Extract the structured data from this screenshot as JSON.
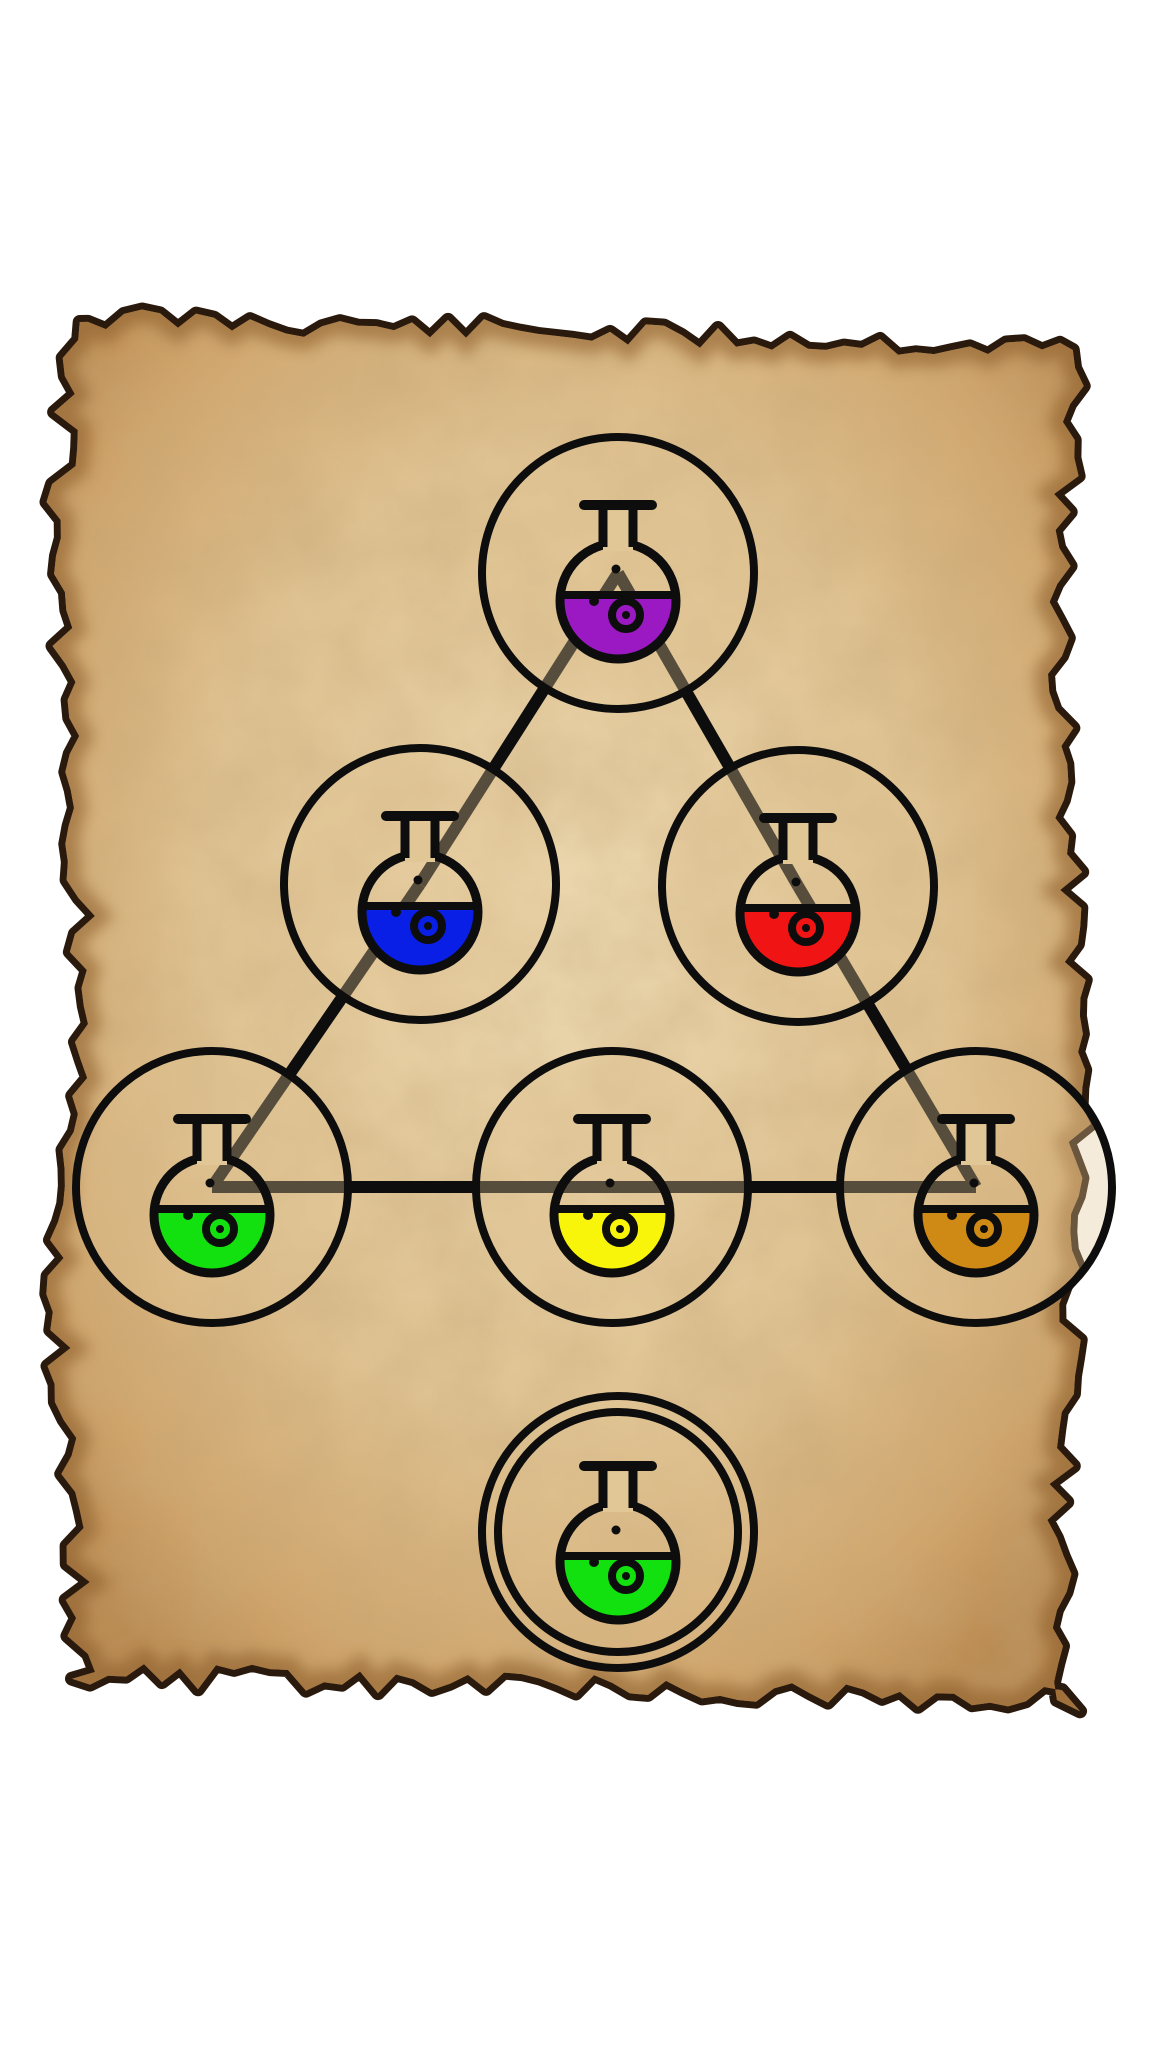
{
  "puzzle": {
    "colors": {
      "parchment_light": "#e8d2a8",
      "parchment_mid": "#d9b884",
      "parchment_dark": "#c49a62",
      "burnt_edge": "#2a1a0e",
      "ink": "#0d0d0d"
    },
    "flasks": [
      {
        "name": "flask-purple-top",
        "liquid": "purple",
        "color": "#9b19c2"
      },
      {
        "name": "flask-blue-mid-left",
        "liquid": "blue",
        "color": "#0a1fe6"
      },
      {
        "name": "flask-red-mid-right",
        "liquid": "red",
        "color": "#f01414"
      },
      {
        "name": "flask-green-bottom-left",
        "liquid": "green",
        "color": "#13e00f"
      },
      {
        "name": "flask-yellow-bottom-center",
        "liquid": "yellow",
        "color": "#f8f40a"
      },
      {
        "name": "flask-amber-bottom-right",
        "liquid": "amber",
        "color": "#cf8a16"
      }
    ],
    "connections": [
      [
        "flask-purple-top",
        "flask-blue-mid-left"
      ],
      [
        "flask-purple-top",
        "flask-red-mid-right"
      ],
      [
        "flask-blue-mid-left",
        "flask-green-bottom-left"
      ],
      [
        "flask-red-mid-right",
        "flask-amber-bottom-right"
      ],
      [
        "flask-green-bottom-left",
        "flask-yellow-bottom-center"
      ],
      [
        "flask-yellow-bottom-center",
        "flask-amber-bottom-right"
      ]
    ],
    "target": {
      "name": "target-flask-green",
      "liquid": "green",
      "color": "#13e00f",
      "double_ring": true
    }
  }
}
